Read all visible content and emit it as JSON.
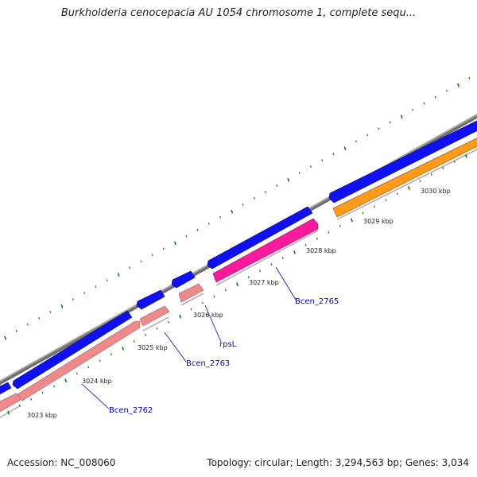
{
  "title": "Burkholderia cenocepacia AU 1054 chromosome 1, complete sequ...",
  "footer": {
    "accession_label": "Accession:",
    "accession": "NC_008060",
    "topology_label": "Topology:",
    "topology": "circular",
    "length_label": "Length:",
    "length": "3,294,563 bp",
    "genes_label": "Genes:",
    "genes": "3,034"
  },
  "tick_labels": [
    "3023 kbp",
    "3024 kbp",
    "3025 kbp",
    "3026 kbp",
    "3027 kbp",
    "3028 kbp",
    "3029 kbp",
    "3030 kbp"
  ],
  "gene_labels": [
    "Bcen_2762",
    "Bcen_2763",
    "rpsL",
    "Bcen_2765"
  ],
  "colors": {
    "backbone": "#8c8c8c",
    "forward_gene": "#1a1aff",
    "reverse_gene_light": "#f08a8a",
    "reverse_gene_magenta": "#ff1a9c",
    "reverse_gene_orange": "#ff9a1a",
    "tick": "#0f7a0f",
    "gene_label": "#0000cc"
  }
}
